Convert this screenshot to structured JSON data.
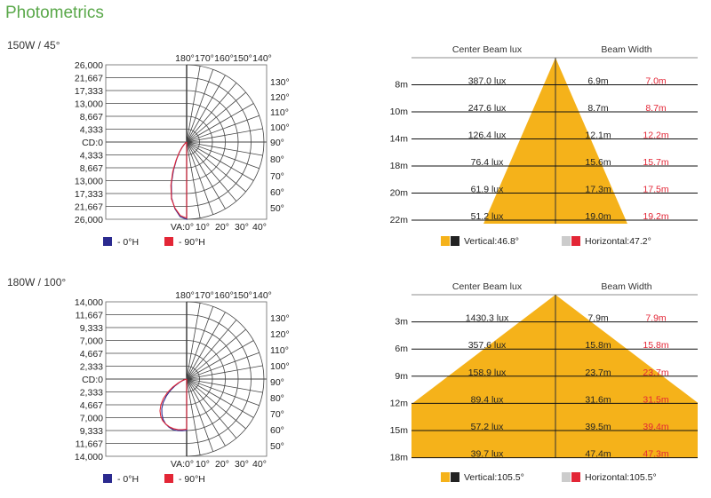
{
  "page": {
    "title": "Photometrics"
  },
  "chart_data": [
    {
      "type": "polar",
      "label": "150W / 45°",
      "cd_ticks": [
        "26,000",
        "21,667",
        "17,333",
        "13,000",
        "8,667",
        "4,333",
        "CD:0",
        "4,333",
        "8,667",
        "13,000",
        "17,333",
        "21,667",
        "26,000"
      ],
      "top_angle_labels": [
        "180°",
        "170°",
        "160°",
        "150°",
        "140°"
      ],
      "right_angle_labels": [
        "130°",
        "120°",
        "110°",
        "100°",
        "90°",
        "80°",
        "70°",
        "60°",
        "50°"
      ],
      "bottom_angle_labels": [
        "VA:0°",
        "10°",
        "20°",
        "30°",
        "40°"
      ],
      "legend": [
        {
          "label": "- 0°H",
          "color": "#2b2a8f"
        },
        {
          "label": "- 90°H",
          "color": "#e32636"
        }
      ],
      "cd_max": 26000,
      "curves": {
        "h0": [
          [
            0,
            26000
          ],
          [
            5,
            25200
          ],
          [
            10,
            22800
          ],
          [
            15,
            19500
          ],
          [
            20,
            15000
          ],
          [
            25,
            10500
          ],
          [
            30,
            6800
          ],
          [
            35,
            4200
          ],
          [
            40,
            2400
          ],
          [
            45,
            1200
          ],
          [
            50,
            400
          ],
          [
            55,
            100
          ]
        ],
        "h90": [
          [
            0,
            25600
          ],
          [
            5,
            24800
          ],
          [
            10,
            22600
          ],
          [
            15,
            19800
          ],
          [
            20,
            15500
          ],
          [
            25,
            11000
          ],
          [
            30,
            7200
          ],
          [
            35,
            4500
          ],
          [
            40,
            2600
          ],
          [
            45,
            1300
          ],
          [
            50,
            450
          ],
          [
            55,
            100
          ]
        ]
      }
    },
    {
      "type": "beam_table",
      "headers": {
        "lux": "Center Beam lux",
        "width": "Beam Width"
      },
      "rows": [
        {
          "d": "8m",
          "lux": "387.0 lux",
          "v": "6.9m",
          "h": "7.0m"
        },
        {
          "d": "10m",
          "lux": "247.6 lux",
          "v": "8.7m",
          "h": "8.7m"
        },
        {
          "d": "14m",
          "lux": "126.4 lux",
          "v": "12.1m",
          "h": "12.2m"
        },
        {
          "d": "18m",
          "lux": "76.4 lux",
          "v": "15.6m",
          "h": "15.7m"
        },
        {
          "d": "20m",
          "lux": "61.9 lux",
          "v": "17.3m",
          "h": "17.5m"
        },
        {
          "d": "22m",
          "lux": "51.2 lux",
          "v": "19.0m",
          "h": "19.2m"
        }
      ],
      "vertical_angle": 46.8,
      "legend": {
        "vertical": "Vertical:46.8°",
        "horizontal": "Horizontal:47.2°"
      },
      "colors": {
        "beam": "#f5b21a",
        "dark": "#222222",
        "grey": "#cccccc",
        "red": "#e32636"
      }
    },
    {
      "type": "polar",
      "label": "180W / 100°",
      "cd_ticks": [
        "14,000",
        "11,667",
        "9,333",
        "7,000",
        "4,667",
        "2,333",
        "CD:0",
        "2,333",
        "4,667",
        "7,000",
        "9,333",
        "11,667",
        "14,000"
      ],
      "top_angle_labels": [
        "180°",
        "170°",
        "160°",
        "150°",
        "140°"
      ],
      "right_angle_labels": [
        "130°",
        "120°",
        "110°",
        "100°",
        "90°",
        "80°",
        "70°",
        "60°",
        "50°"
      ],
      "bottom_angle_labels": [
        "VA:0°",
        "10°",
        "20°",
        "30°",
        "40°"
      ],
      "legend": [
        {
          "label": "- 0°H",
          "color": "#2b2a8f"
        },
        {
          "label": "- 90°H",
          "color": "#e32636"
        }
      ],
      "cd_max": 14000,
      "curves": {
        "h0": [
          [
            0,
            9300
          ],
          [
            5,
            9400
          ],
          [
            10,
            9500
          ],
          [
            15,
            9500
          ],
          [
            20,
            9300
          ],
          [
            25,
            9000
          ],
          [
            30,
            8500
          ],
          [
            35,
            7800
          ],
          [
            40,
            7000
          ],
          [
            45,
            6000
          ],
          [
            50,
            4800
          ],
          [
            55,
            3600
          ],
          [
            60,
            2400
          ],
          [
            65,
            1400
          ],
          [
            70,
            700
          ],
          [
            75,
            250
          ],
          [
            80,
            60
          ]
        ],
        "h90": [
          [
            0,
            9100
          ],
          [
            5,
            9200
          ],
          [
            10,
            9300
          ],
          [
            15,
            9300
          ],
          [
            20,
            9200
          ],
          [
            25,
            9000
          ],
          [
            30,
            8700
          ],
          [
            35,
            8200
          ],
          [
            40,
            7500
          ],
          [
            45,
            6600
          ],
          [
            50,
            5500
          ],
          [
            55,
            4200
          ],
          [
            60,
            2900
          ],
          [
            65,
            1700
          ],
          [
            70,
            850
          ],
          [
            75,
            300
          ],
          [
            80,
            70
          ]
        ]
      }
    },
    {
      "type": "beam_table",
      "headers": {
        "lux": "Center Beam lux",
        "width": "Beam Width"
      },
      "rows": [
        {
          "d": "3m",
          "lux": "1430.3 lux",
          "v": "7.9m",
          "h": "7.9m"
        },
        {
          "d": "6m",
          "lux": "357.6 lux",
          "v": "15.8m",
          "h": "15.8m"
        },
        {
          "d": "9m",
          "lux": "158.9 lux",
          "v": "23.7m",
          "h": "23.7m"
        },
        {
          "d": "12m",
          "lux": "89.4 lux",
          "v": "31.6m",
          "h": "31.5m"
        },
        {
          "d": "15m",
          "lux": "57.2 lux",
          "v": "39.5m",
          "h": "39.4m"
        },
        {
          "d": "18m",
          "lux": "39.7 lux",
          "v": "47.4m",
          "h": "47.3m"
        }
      ],
      "vertical_angle": 105.5,
      "legend": {
        "vertical": "Vertical:105.5°",
        "horizontal": "Horizontal:105.5°"
      },
      "colors": {
        "beam": "#f5b21a",
        "dark": "#222222",
        "grey": "#cccccc",
        "red": "#e32636"
      }
    }
  ]
}
